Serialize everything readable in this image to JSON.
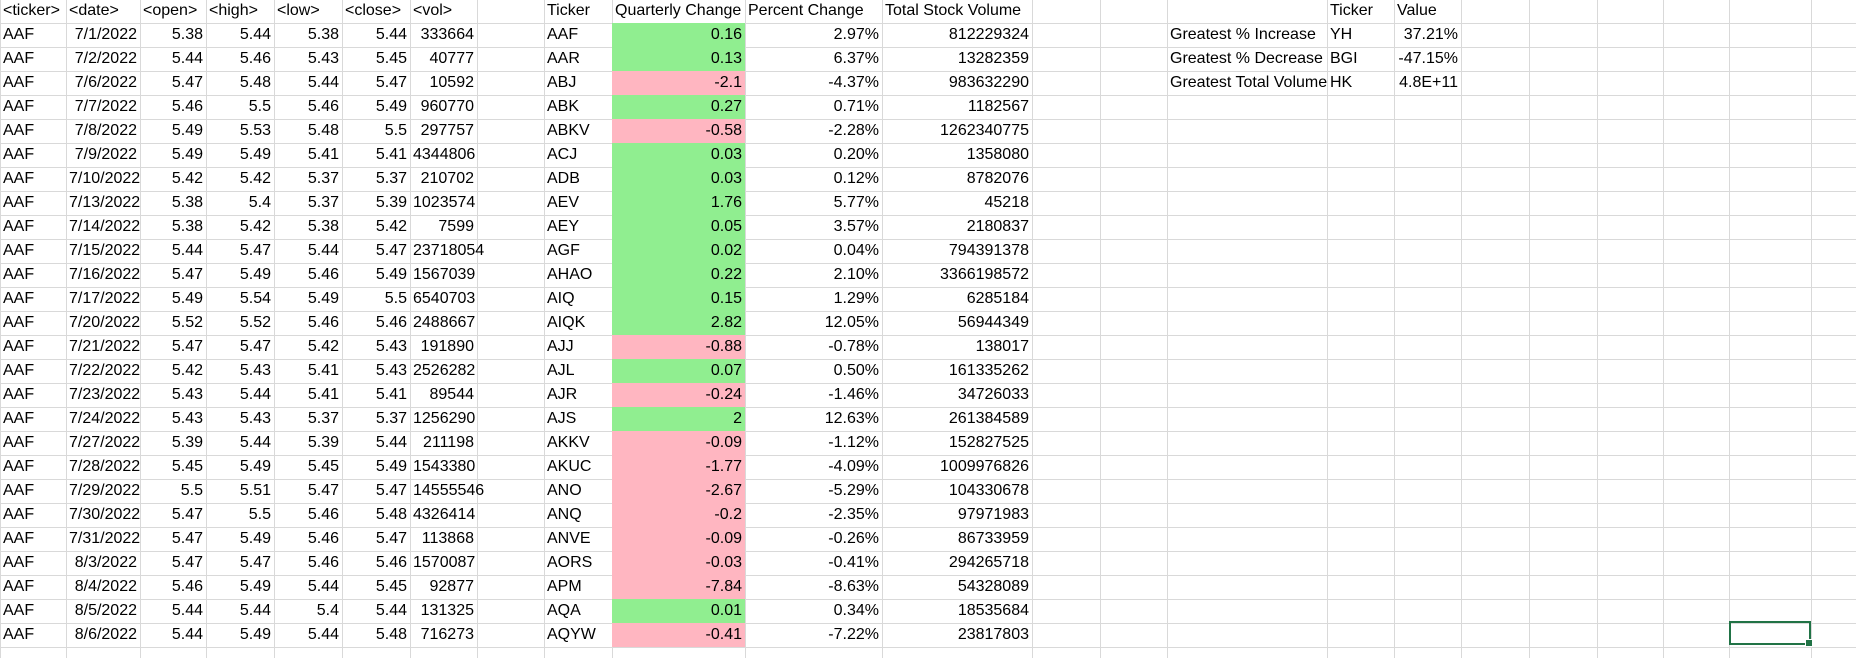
{
  "raw_headers": [
    "<ticker>",
    "<date>",
    "<open>",
    "<high>",
    "<low>",
    "<close>",
    "<vol>"
  ],
  "raw_rows": [
    [
      "AAF",
      "7/1/2022",
      "5.38",
      "5.44",
      "5.38",
      "5.44",
      "333664"
    ],
    [
      "AAF",
      "7/2/2022",
      "5.44",
      "5.46",
      "5.43",
      "5.45",
      "40777"
    ],
    [
      "AAF",
      "7/6/2022",
      "5.47",
      "5.48",
      "5.44",
      "5.47",
      "10592"
    ],
    [
      "AAF",
      "7/7/2022",
      "5.46",
      "5.5",
      "5.46",
      "5.49",
      "960770"
    ],
    [
      "AAF",
      "7/8/2022",
      "5.49",
      "5.53",
      "5.48",
      "5.5",
      "297757"
    ],
    [
      "AAF",
      "7/9/2022",
      "5.49",
      "5.49",
      "5.41",
      "5.41",
      "4344806"
    ],
    [
      "AAF",
      "7/10/2022",
      "5.42",
      "5.42",
      "5.37",
      "5.37",
      "210702"
    ],
    [
      "AAF",
      "7/13/2022",
      "5.38",
      "5.4",
      "5.37",
      "5.39",
      "1023574"
    ],
    [
      "AAF",
      "7/14/2022",
      "5.38",
      "5.42",
      "5.38",
      "5.42",
      "7599"
    ],
    [
      "AAF",
      "7/15/2022",
      "5.44",
      "5.47",
      "5.44",
      "5.47",
      "23718054"
    ],
    [
      "AAF",
      "7/16/2022",
      "5.47",
      "5.49",
      "5.46",
      "5.49",
      "1567039"
    ],
    [
      "AAF",
      "7/17/2022",
      "5.49",
      "5.54",
      "5.49",
      "5.5",
      "6540703"
    ],
    [
      "AAF",
      "7/20/2022",
      "5.52",
      "5.52",
      "5.46",
      "5.46",
      "2488667"
    ],
    [
      "AAF",
      "7/21/2022",
      "5.47",
      "5.47",
      "5.42",
      "5.43",
      "191890"
    ],
    [
      "AAF",
      "7/22/2022",
      "5.42",
      "5.43",
      "5.41",
      "5.43",
      "2526282"
    ],
    [
      "AAF",
      "7/23/2022",
      "5.43",
      "5.44",
      "5.41",
      "5.41",
      "89544"
    ],
    [
      "AAF",
      "7/24/2022",
      "5.43",
      "5.43",
      "5.37",
      "5.37",
      "1256290"
    ],
    [
      "AAF",
      "7/27/2022",
      "5.39",
      "5.44",
      "5.39",
      "5.44",
      "211198"
    ],
    [
      "AAF",
      "7/28/2022",
      "5.45",
      "5.49",
      "5.45",
      "5.49",
      "1543380"
    ],
    [
      "AAF",
      "7/29/2022",
      "5.5",
      "5.51",
      "5.47",
      "5.47",
      "14555546"
    ],
    [
      "AAF",
      "7/30/2022",
      "5.47",
      "5.5",
      "5.46",
      "5.48",
      "4326414"
    ],
    [
      "AAF",
      "7/31/2022",
      "5.47",
      "5.49",
      "5.46",
      "5.47",
      "113868"
    ],
    [
      "AAF",
      "8/3/2022",
      "5.47",
      "5.47",
      "5.46",
      "5.46",
      "1570087"
    ],
    [
      "AAF",
      "8/4/2022",
      "5.46",
      "5.49",
      "5.44",
      "5.45",
      "92877"
    ],
    [
      "AAF",
      "8/5/2022",
      "5.44",
      "5.44",
      "5.4",
      "5.44",
      "131325"
    ],
    [
      "AAF",
      "8/6/2022",
      "5.44",
      "5.49",
      "5.44",
      "5.48",
      "716273"
    ]
  ],
  "summary_headers": [
    "Ticker",
    "Quarterly Change",
    "Percent Change",
    "Total Stock Volume"
  ],
  "summary_rows": [
    [
      "AAF",
      "0.16",
      "2.97%",
      "812229324"
    ],
    [
      "AAR",
      "0.13",
      "6.37%",
      "13282359"
    ],
    [
      "ABJ",
      "-2.1",
      "-4.37%",
      "983632290"
    ],
    [
      "ABK",
      "0.27",
      "0.71%",
      "1182567"
    ],
    [
      "ABKV",
      "-0.58",
      "-2.28%",
      "1262340775"
    ],
    [
      "ACJ",
      "0.03",
      "0.20%",
      "1358080"
    ],
    [
      "ADB",
      "0.03",
      "0.12%",
      "8782076"
    ],
    [
      "AEV",
      "1.76",
      "5.77%",
      "45218"
    ],
    [
      "AEY",
      "0.05",
      "3.57%",
      "2180837"
    ],
    [
      "AGF",
      "0.02",
      "0.04%",
      "794391378"
    ],
    [
      "AHAO",
      "0.22",
      "2.10%",
      "3366198572"
    ],
    [
      "AIQ",
      "0.15",
      "1.29%",
      "6285184"
    ],
    [
      "AIQK",
      "2.82",
      "12.05%",
      "56944349"
    ],
    [
      "AJJ",
      "-0.88",
      "-0.78%",
      "138017"
    ],
    [
      "AJL",
      "0.07",
      "0.50%",
      "161335262"
    ],
    [
      "AJR",
      "-0.24",
      "-1.46%",
      "34726033"
    ],
    [
      "AJS",
      "2",
      "12.63%",
      "261384589"
    ],
    [
      "AKKV",
      "-0.09",
      "-1.12%",
      "152827525"
    ],
    [
      "AKUC",
      "-1.77",
      "-4.09%",
      "1009976826"
    ],
    [
      "ANO",
      "-2.67",
      "-5.29%",
      "104330678"
    ],
    [
      "ANQ",
      "-0.2",
      "-2.35%",
      "97971983"
    ],
    [
      "ANVE",
      "-0.09",
      "-0.26%",
      "86733959"
    ],
    [
      "AORS",
      "-0.03",
      "-0.41%",
      "294265718"
    ],
    [
      "APM",
      "-7.84",
      "-8.63%",
      "54328089"
    ],
    [
      "AQA",
      "0.01",
      "0.34%",
      "18535684"
    ],
    [
      "AQYW",
      "-0.41",
      "-7.22%",
      "23817803"
    ]
  ],
  "greatest_headers": [
    "Ticker",
    "Value"
  ],
  "greatest_rows": [
    [
      "Greatest % Increase",
      "YH",
      "37.21%"
    ],
    [
      "Greatest % Decrease",
      "BGI",
      "-47.15%"
    ],
    [
      "Greatest Total Volume",
      "HK",
      "4.8E+11"
    ]
  ],
  "colors": {
    "positive_fill": "#90ee90",
    "negative_fill": "#ffb6c1",
    "gridline": "#d9d9d9",
    "selection": "#217346"
  }
}
